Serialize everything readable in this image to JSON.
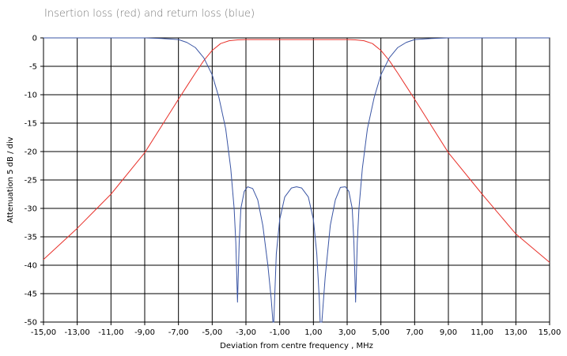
{
  "chart_data": {
    "type": "line",
    "title": "Insertion loss (red) and return loss (blue)",
    "xlabel": "Deviation from centre frequency ,  MHz",
    "ylabel": "Attenuation  5 dB / div",
    "xlim": [
      -15,
      15
    ],
    "ylim": [
      -50,
      0
    ],
    "x_ticks": [
      "-15,00",
      "-13,00",
      "-11,00",
      "-9,00",
      "-7,00",
      "-5,00",
      "-3,00",
      "-1,00",
      "1,00",
      "3,00",
      "5,00",
      "7,00",
      "9,00",
      "11,00",
      "13,00",
      "15,00"
    ],
    "y_ticks": [
      "0",
      "-5",
      "-10",
      "-15",
      "-20",
      "-25",
      "-30",
      "-35",
      "-40",
      "-45",
      "-50"
    ],
    "grid": true,
    "series": [
      {
        "name": "Insertion loss",
        "color": "#e8312a",
        "x": [
          -15,
          -13,
          -11,
          -9,
          -8,
          -7,
          -6.5,
          -6,
          -5.5,
          -5,
          -4.5,
          -4,
          -3.5,
          -3,
          -2,
          0,
          2,
          3,
          3.5,
          4,
          4.5,
          5,
          5.5,
          6,
          6.5,
          7,
          8,
          9,
          11,
          13,
          15
        ],
        "y": [
          -39,
          -33.5,
          -27.5,
          -20.2,
          -15.5,
          -10.8,
          -8.5,
          -6.2,
          -4,
          -2.2,
          -1,
          -0.5,
          -0.35,
          -0.3,
          -0.3,
          -0.3,
          -0.3,
          -0.3,
          -0.35,
          -0.5,
          -1,
          -2.2,
          -4,
          -6.2,
          -8.5,
          -10.8,
          -15.5,
          -20.2,
          -27.5,
          -34.5,
          -39.5
        ]
      },
      {
        "name": "Return loss",
        "color": "#3a55a4",
        "x": [
          -15,
          -9,
          -8,
          -7,
          -6.5,
          -6,
          -5.5,
          -5,
          -4.6,
          -4.2,
          -3.9,
          -3.7,
          -3.6,
          -3.5,
          -3.4,
          -3.3,
          -3.1,
          -2.9,
          -2.6,
          -2.3,
          -2.0,
          -1.7,
          -1.5,
          -1.4,
          -1.35,
          -1.3,
          -1.2,
          -1.0,
          -0.7,
          -0.3,
          0.0,
          0.3,
          0.7,
          1.0,
          1.2,
          1.35,
          1.4,
          1.5,
          1.7,
          2.0,
          2.3,
          2.6,
          2.9,
          3.1,
          3.3,
          3.4,
          3.5,
          3.6,
          3.7,
          3.9,
          4.2,
          4.6,
          5.0,
          5.5,
          6.0,
          6.5,
          7.0,
          8.0,
          9.0,
          15
        ],
        "y": [
          0,
          0,
          -0.1,
          -0.3,
          -0.8,
          -1.7,
          -3.5,
          -6.5,
          -10.5,
          -16,
          -23,
          -30,
          -36,
          -46.5,
          -36,
          -30,
          -27,
          -26.2,
          -26.5,
          -28.5,
          -33,
          -40,
          -46,
          -50,
          -50,
          -46,
          -38,
          -32,
          -28,
          -26.4,
          -26.2,
          -26.4,
          -28,
          -32,
          -38,
          -46,
          -50,
          -50,
          -42,
          -33,
          -28.5,
          -26.3,
          -26.2,
          -27,
          -30,
          -36,
          -46.5,
          -36,
          -30,
          -23,
          -16,
          -10.5,
          -6.5,
          -3.5,
          -1.7,
          -0.8,
          -0.3,
          -0.1,
          0,
          0
        ]
      }
    ]
  }
}
